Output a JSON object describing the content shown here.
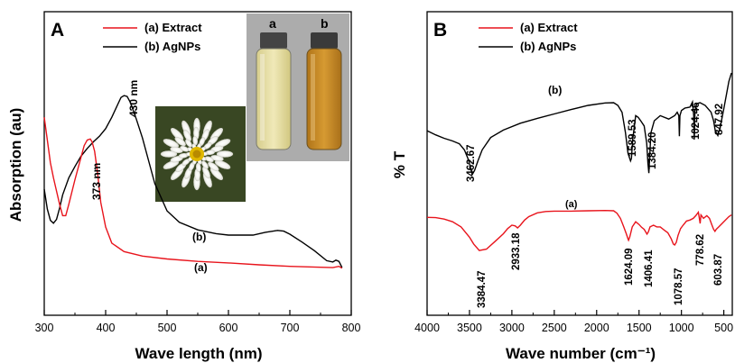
{
  "chart_data": [
    {
      "type": "line",
      "panel": "A",
      "xlabel": "Wave length (nm)",
      "ylabel": "Absorption (au)",
      "xlim": [
        300,
        800
      ],
      "x_ticks": [
        "300",
        "400",
        "500",
        "600",
        "700",
        "800"
      ],
      "grid": false,
      "legend": [
        {
          "label": "(a) Extract",
          "color": "#e8141c"
        },
        {
          "label": "(b) AgNPs",
          "color": "#000000"
        }
      ],
      "legend_placement": "top",
      "inset": {
        "vials": [
          "a",
          "b"
        ],
        "vial_colors": [
          "#e2dba0",
          "#c58822"
        ],
        "flower_photo": true
      },
      "series": [
        {
          "name": "(a) Extract",
          "color": "#e8141c",
          "x": [
            300,
            305,
            310,
            315,
            320,
            325,
            330,
            335,
            340,
            350,
            360,
            365,
            370,
            375,
            378,
            382,
            387,
            392,
            400,
            410,
            430,
            460,
            500,
            550,
            600,
            650,
            700,
            750,
            770,
            780,
            785
          ],
          "y": [
            0.88,
            0.76,
            0.64,
            0.56,
            0.49,
            0.42,
            0.36,
            0.36,
            0.42,
            0.55,
            0.67,
            0.73,
            0.76,
            0.765,
            0.75,
            0.7,
            0.58,
            0.43,
            0.3,
            0.215,
            0.17,
            0.146,
            0.131,
            0.118,
            0.11,
            0.1,
            0.092,
            0.087,
            0.085,
            0.092,
            0.082
          ]
        },
        {
          "name": "(b) AgNPs",
          "color": "#000000",
          "x": [
            300,
            305,
            310,
            315,
            320,
            325,
            330,
            340,
            350,
            360,
            370,
            380,
            390,
            400,
            410,
            420,
            425,
            430,
            435,
            440,
            450,
            460,
            470,
            480,
            500,
            520,
            550,
            580,
            600,
            640,
            660,
            680,
            690,
            700,
            720,
            740,
            760,
            770,
            775,
            780,
            785
          ],
          "y": [
            0.5,
            0.395,
            0.335,
            0.32,
            0.34,
            0.4,
            0.47,
            0.56,
            0.62,
            0.675,
            0.715,
            0.75,
            0.78,
            0.82,
            0.88,
            0.95,
            0.985,
            0.995,
            0.99,
            0.96,
            0.87,
            0.77,
            0.65,
            0.53,
            0.385,
            0.325,
            0.285,
            0.265,
            0.257,
            0.257,
            0.272,
            0.282,
            0.278,
            0.262,
            0.22,
            0.175,
            0.122,
            0.115,
            0.125,
            0.118,
            0.085
          ]
        }
      ],
      "annotations": [
        {
          "text": "373 nm",
          "x": 373
        },
        {
          "text": "430 nm",
          "x": 430
        },
        {
          "text": "(b)",
          "x": 590,
          "y": 0.28
        },
        {
          "text": "(a)",
          "x": 520,
          "y": 0.15
        }
      ]
    },
    {
      "type": "line",
      "panel": "B",
      "xlabel": "Wave number (cm⁻¹)",
      "ylabel": "% T",
      "xlim": [
        4000,
        400
      ],
      "x_ticks": [
        "4000",
        "3500",
        "3000",
        "2500",
        "2000",
        "1500",
        "1000",
        "500"
      ],
      "grid": false,
      "legend": [
        {
          "label": "(a) Extract",
          "color": "#e8141c"
        },
        {
          "label": "(b) AgNPs",
          "color": "#000000"
        }
      ],
      "legend_placement": "top",
      "series": [
        {
          "name": "(b) AgNPs",
          "color": "#000000",
          "x": [
            4000,
            3900,
            3800,
            3700,
            3620,
            3560,
            3510,
            3480,
            3463,
            3440,
            3400,
            3350,
            3250,
            3100,
            2900,
            2700,
            2500,
            2300,
            2100,
            1900,
            1800,
            1750,
            1700,
            1660,
            1630,
            1600,
            1590,
            1575,
            1540,
            1510,
            1480,
            1440,
            1410,
            1395,
            1384,
            1375,
            1360,
            1320,
            1250,
            1150,
            1080,
            1050,
            1030,
            1024,
            1018,
            1000,
            960,
            900,
            870,
            855,
            848,
            840,
            820,
            780,
            720,
            650,
            620,
            600,
            570,
            540,
            500,
            470,
            440,
            410
          ],
          "y": [
            3.24,
            3.36,
            3.46,
            3.54,
            3.62,
            3.8,
            4.1,
            4.4,
            4.5,
            4.4,
            4.12,
            3.8,
            3.44,
            3.22,
            3.02,
            2.88,
            2.75,
            2.62,
            2.5,
            2.43,
            2.42,
            2.5,
            2.7,
            3.3,
            3.9,
            4.12,
            4.05,
            3.5,
            2.8,
            2.85,
            2.95,
            3.1,
            3.6,
            4.2,
            4.48,
            4.0,
            3.3,
            2.95,
            2.8,
            2.9,
            2.8,
            2.7,
            2.8,
            3.4,
            2.8,
            2.65,
            2.58,
            2.55,
            2.4,
            2.8,
            3.5,
            2.65,
            2.45,
            2.42,
            2.5,
            2.7,
            2.95,
            3.25,
            3.38,
            3.1,
            2.6,
            2.2,
            1.8,
            1.55
          ]
        },
        {
          "name": "(a) Extract",
          "color": "#e8141c",
          "x": [
            4000,
            3900,
            3800,
            3700,
            3600,
            3500,
            3450,
            3384,
            3300,
            3200,
            3100,
            3050,
            3000,
            2960,
            2933,
            2900,
            2850,
            2800,
            2700,
            2600,
            2500,
            2300,
            2100,
            1900,
            1800,
            1760,
            1720,
            1680,
            1650,
            1630,
            1624,
            1610,
            1580,
            1540,
            1500,
            1470,
            1440,
            1420,
            1406,
            1390,
            1370,
            1330,
            1290,
            1250,
            1200,
            1160,
            1120,
            1095,
            1079,
            1060,
            1040,
            1010,
            980,
            940,
            900,
            860,
            830,
            800,
            790,
            779,
            770,
            740,
            700,
            670,
            640,
            620,
            604,
            590,
            560,
            520,
            480,
            440,
            410
          ],
          "y": [
            5.77,
            5.78,
            5.82,
            5.9,
            6.05,
            6.35,
            6.55,
            6.74,
            6.7,
            6.48,
            6.25,
            6.1,
            6.0,
            6.02,
            6.08,
            6.0,
            5.85,
            5.75,
            5.64,
            5.6,
            5.59,
            5.59,
            5.58,
            5.57,
            5.58,
            5.65,
            5.8,
            6.05,
            6.25,
            6.4,
            6.44,
            6.35,
            6.05,
            5.9,
            5.98,
            6.06,
            6.12,
            6.2,
            6.26,
            6.2,
            6.05,
            6.0,
            6.05,
            6.05,
            6.15,
            6.22,
            6.4,
            6.55,
            6.58,
            6.5,
            6.3,
            6.1,
            6.0,
            5.88,
            5.85,
            5.8,
            5.72,
            5.62,
            5.78,
            5.95,
            5.7,
            5.8,
            5.72,
            5.8,
            6.0,
            6.12,
            6.18,
            6.12,
            6.05,
            5.95,
            5.85,
            5.75,
            5.7
          ]
        }
      ],
      "peak_labels": [
        {
          "text": "3462.67",
          "series": "(b) AgNPs"
        },
        {
          "text": "1589.53",
          "series": "(b) AgNPs"
        },
        {
          "text": "1384.20",
          "series": "(b) AgNPs"
        },
        {
          "text": "1024.46",
          "series": "(b) AgNPs"
        },
        {
          "text": "847.92",
          "series": "(b) AgNPs"
        },
        {
          "text": "3384.47",
          "series": "(a) Extract"
        },
        {
          "text": "2933.18",
          "series": "(a) Extract"
        },
        {
          "text": "1624.09",
          "series": "(a) Extract"
        },
        {
          "text": "1406.41",
          "series": "(a) Extract"
        },
        {
          "text": "1078.57",
          "series": "(a) Extract"
        },
        {
          "text": "778.62",
          "series": "(a) Extract"
        },
        {
          "text": "603.87",
          "series": "(a) Extract"
        }
      ],
      "series_labels": [
        {
          "text": "(b)"
        },
        {
          "text": "(a)"
        }
      ]
    }
  ]
}
